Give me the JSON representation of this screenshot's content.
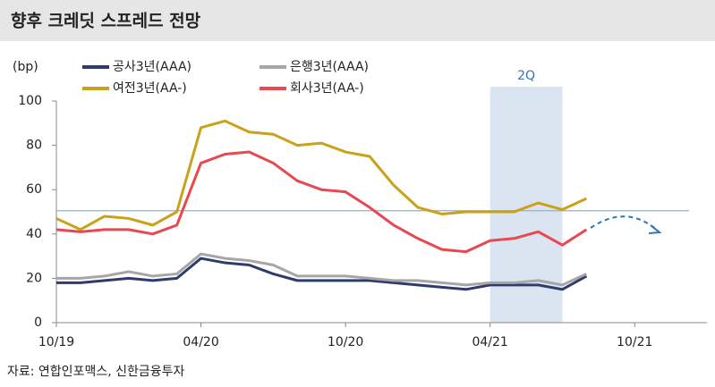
{
  "chart_data": {
    "type": "line",
    "title": "향후 크레딧 스프레드 전망",
    "y_unit": "(bp)",
    "source": "자료: 연합인포맥스, 신한금융투자",
    "x": [
      "10/19",
      "11/19",
      "12/19",
      "01/20",
      "02/20",
      "03/20",
      "04/20",
      "05/20",
      "06/20",
      "07/20",
      "08/20",
      "09/20",
      "10/20",
      "11/20",
      "12/20",
      "01/21",
      "02/21",
      "03/21",
      "04/21",
      "05/21",
      "06/21",
      "07/21",
      "08/21"
    ],
    "series": [
      {
        "name": "공사3년(AAA)",
        "color": "#2e3b6e",
        "values": [
          18,
          18,
          19,
          20,
          19,
          20,
          29,
          27,
          26,
          22,
          19,
          19,
          19,
          19,
          18,
          17,
          16,
          15,
          17,
          17,
          17,
          15,
          21
        ]
      },
      {
        "name": "은행3년(AAA)",
        "color": "#a6a6a6",
        "values": [
          20,
          20,
          21,
          23,
          21,
          22,
          31,
          29,
          28,
          26,
          21,
          21,
          21,
          20,
          19,
          19,
          18,
          17,
          18,
          18,
          19,
          17,
          22
        ]
      },
      {
        "name": "여전3년(AA-)",
        "color": "#c9a21a",
        "values": [
          47,
          42,
          48,
          47,
          44,
          50,
          88,
          91,
          86,
          85,
          80,
          81,
          77,
          75,
          62,
          52,
          49,
          50,
          50,
          50,
          54,
          51,
          56
        ]
      },
      {
        "name": "회사3년(AA-)",
        "color": "#e8484f",
        "values": [
          42,
          41,
          42,
          42,
          40,
          44,
          72,
          76,
          77,
          72,
          64,
          60,
          59,
          52,
          44,
          38,
          33,
          32,
          37,
          38,
          41,
          35,
          42
        ]
      }
    ],
    "xlim": [
      "10/19",
      "01/22"
    ],
    "xticks": [
      "10/19",
      "04/20",
      "10/20",
      "04/21",
      "10/21"
    ],
    "ylim": [
      0,
      100
    ],
    "yticks": [
      0,
      20,
      40,
      60,
      80,
      100
    ],
    "reference_line": 50.5,
    "reference_color": "#8fb0cc",
    "shade": {
      "from": "04/21",
      "to": "07/21",
      "label": "2Q",
      "color": "#dbe5f1"
    }
  }
}
